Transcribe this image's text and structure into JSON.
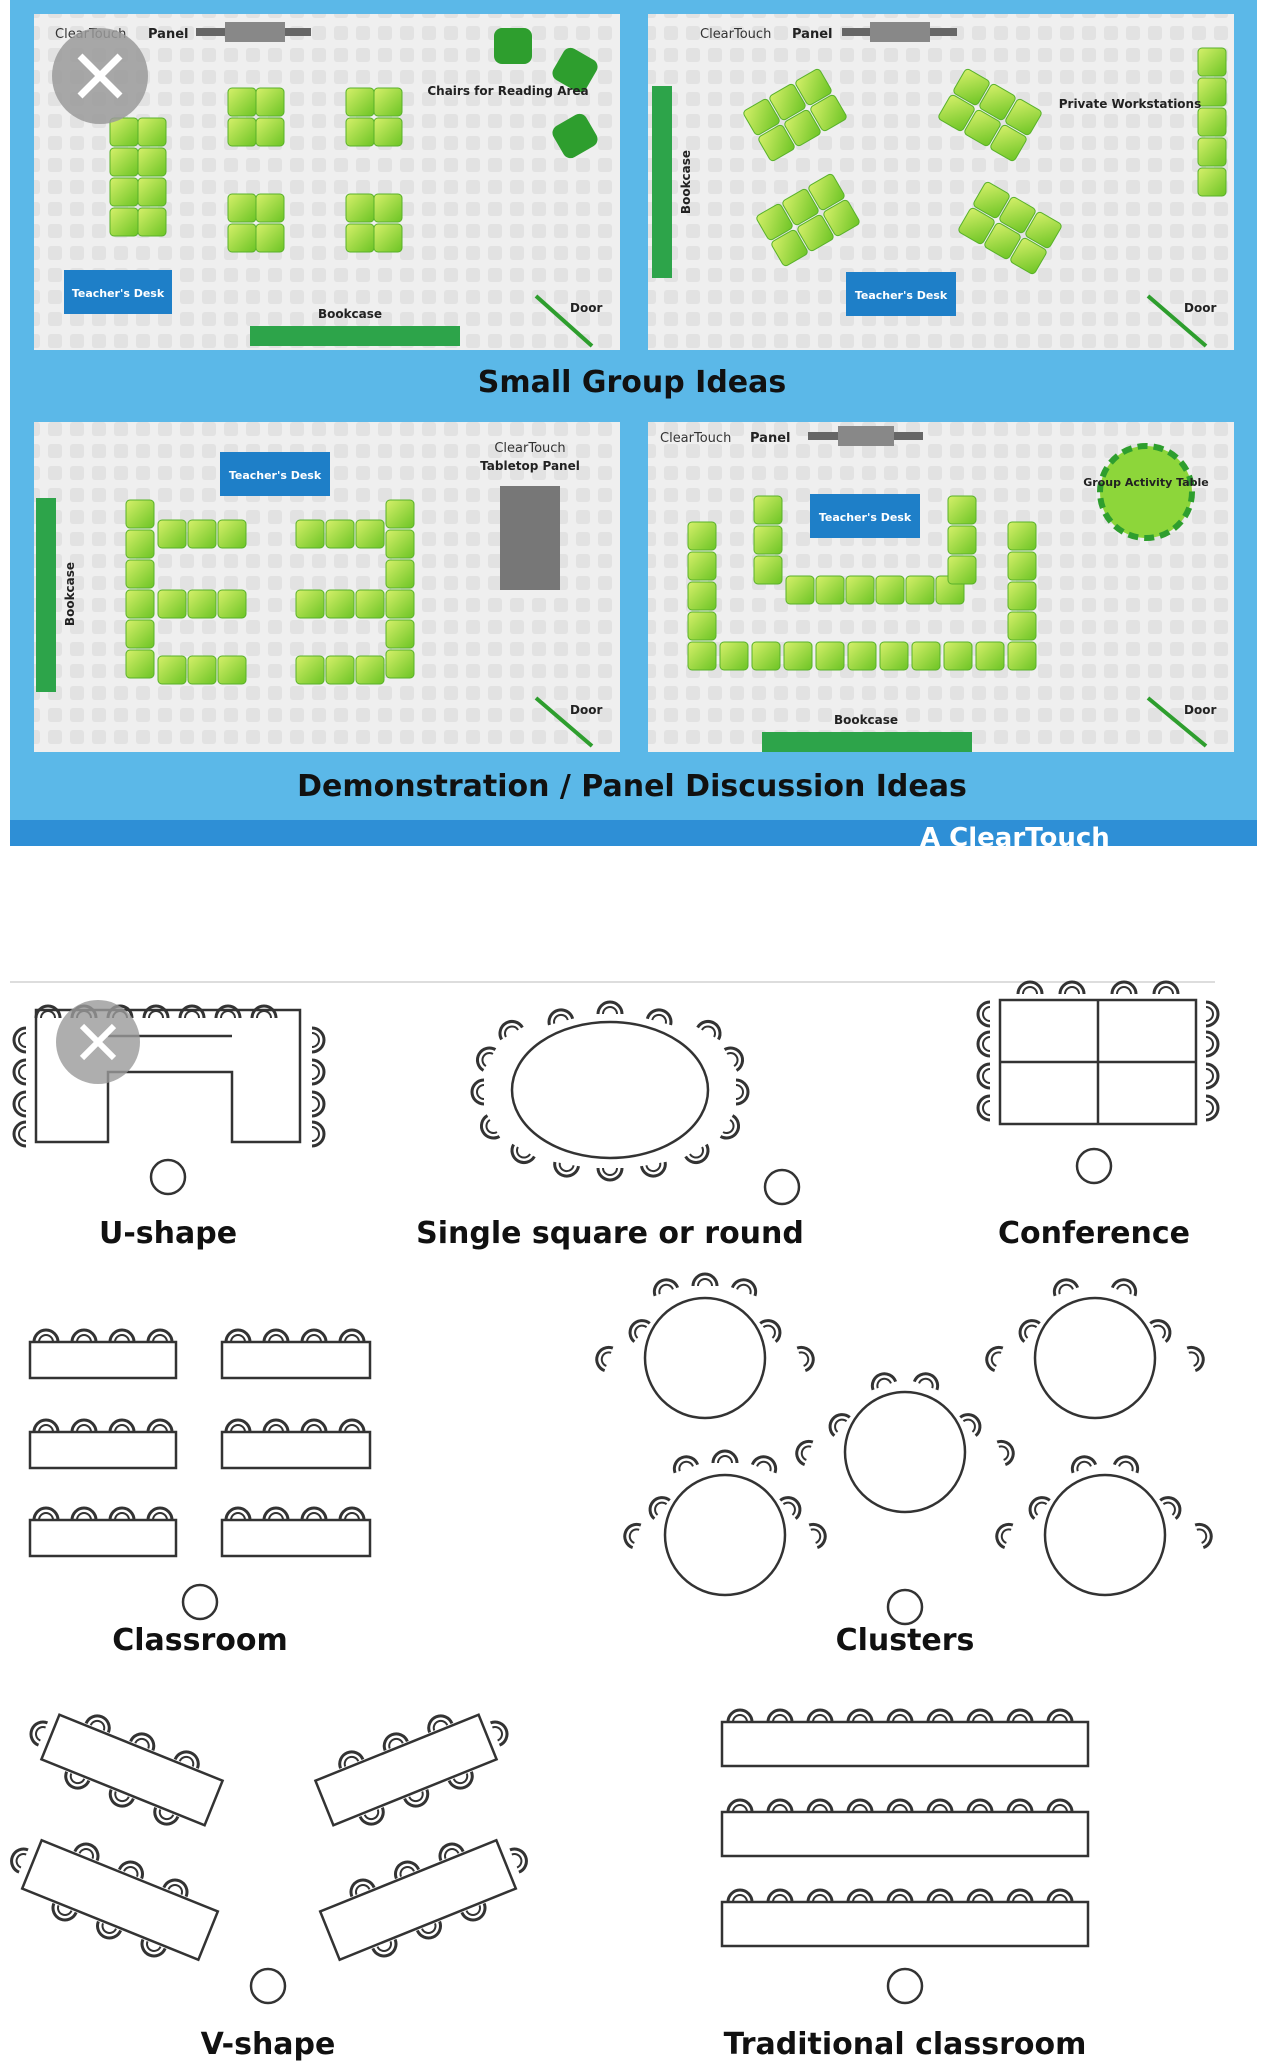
{
  "top_panel": {
    "brand": "ClearTouch",
    "panel_label": "Panel",
    "small_group_heading": "Small Group Ideas",
    "demo_heading": "Demonstration / Panel Discussion Ideas",
    "footer_partial": "A ClearTouch",
    "room1": {
      "reading_area": "Chairs for Reading Area",
      "teacher_desk": "Teacher's Desk",
      "bookcase": "Bookcase",
      "door": "Door"
    },
    "room2": {
      "private_workstations": "Private Workstations",
      "teacher_desk": "Teacher's Desk",
      "bookcase": "Bookcase",
      "door": "Door"
    },
    "room3": {
      "teacher_desk": "Teacher's Desk",
      "tabletop_panel": "Tabletop Panel",
      "bookcase": "Bookcase",
      "door": "Door"
    },
    "room4": {
      "teacher_desk": "Teacher's Desk",
      "group_table": "Group Activity Table",
      "bookcase": "Bookcase",
      "door": "Door"
    },
    "colors": {
      "frame": "#5BB8E8",
      "floor": "#EDEDED",
      "seat_green": "#8DD63A",
      "seat_dark": "#2E9E2E",
      "desk_blue": "#1E7FC8",
      "bookcase": "#2DA44A",
      "panel_gray": "#777777"
    }
  },
  "layouts": {
    "u_shape": "U-shape",
    "single_square": "Single square or round",
    "conference": "Conference",
    "classroom": "Classroom",
    "clusters": "Clusters",
    "v_shape": "V-shape",
    "traditional": "Traditional classroom"
  },
  "icons": {
    "close": "close-icon"
  }
}
